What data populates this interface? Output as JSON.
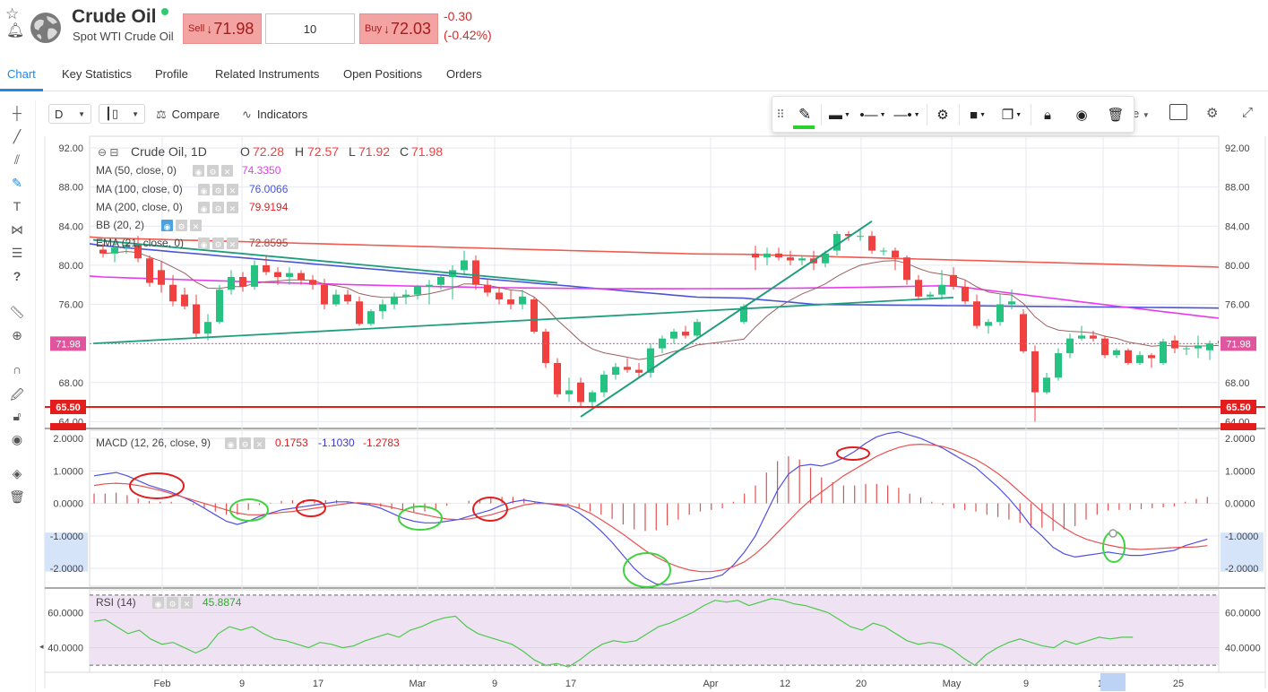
{
  "header": {
    "instrument_name": "Crude Oil",
    "instrument_subtitle": "Spot WTI Crude Oil",
    "sell_label": "Sell",
    "sell_price": "71.98",
    "quantity": "10",
    "buy_label": "Buy",
    "buy_price": "72.03",
    "change_abs": "-0.30",
    "change_pct": "(-0.42%)",
    "arrow": "↓"
  },
  "tabs": [
    "Chart",
    "Key Statistics",
    "Profile",
    "Related Instruments",
    "Open Positions",
    "Orders"
  ],
  "toolbar": {
    "interval": "D",
    "compare_label": "Compare",
    "indicators_label": "Indicators",
    "partial_dropdown": "e"
  },
  "legend": {
    "symbol": "Crude Oil, 1D",
    "o_label": "O",
    "o_value": "72.28",
    "h_label": "H",
    "h_value": "72.57",
    "l_label": "L",
    "l_value": "71.92",
    "c_label": "C",
    "c_value": "71.98",
    "ma50_label": "MA (50, close, 0)",
    "ma50_value": "74.3350",
    "ma100_label": "MA (100, close, 0)",
    "ma100_value": "76.0066",
    "ma200_label": "MA (200, close, 0)",
    "ma200_value": "79.9194",
    "bb_label": "BB (20, 2)",
    "ema_label": "EMA (21, close, 0)",
    "ema_value": "72.8595",
    "macd_label": "MACD (12, 26, close, 9)",
    "macd_v1": "0.1753",
    "macd_v2": "-1.1030",
    "macd_v3": "-1.2783",
    "rsi_label": "RSI (14)",
    "rsi_value": "45.8874"
  },
  "colors": {
    "up": "#26c281",
    "down": "#f0403f",
    "ma50": "#e83aee",
    "ma100": "#4a55d6",
    "ma200": "#f05a4f",
    "ema": "#9b6060",
    "trend": "#1f9e7e",
    "support": "#e31c1c",
    "rsi": "#4cc94c",
    "rsi_bg": "#efe3f3",
    "macd_line": "#5050e0",
    "signal_line": "#e85050"
  },
  "chart_data": [
    {
      "type": "candlestick",
      "title": "Crude Oil, 1D",
      "y_ticks": [
        "92.00",
        "88.00",
        "84.00",
        "80.00",
        "76.00",
        "72.00",
        "68.00",
        "64.00"
      ],
      "ylim": [
        63.3,
        93.2
      ],
      "x_ticks": [
        "Feb",
        "9",
        "17",
        "Mar",
        "9",
        "17",
        "Apr",
        "12",
        "20",
        "May",
        "9",
        "17",
        "25"
      ],
      "last_price_label": "71.98",
      "support_label": "65.50",
      "support_level": 65.5,
      "partial_bottom_label": "63.34",
      "candles": [
        [
          81.6,
          82.2,
          80.8,
          81.2
        ],
        [
          81.2,
          82.2,
          80.3,
          81.8
        ],
        [
          81.8,
          82.7,
          81.2,
          82.1
        ],
        [
          82.1,
          83.0,
          80.3,
          80.7
        ],
        [
          80.7,
          81.0,
          77.8,
          78.2
        ],
        [
          79.5,
          80.4,
          77.2,
          78.0
        ],
        [
          78.0,
          79.0,
          75.8,
          76.3
        ],
        [
          77.0,
          77.7,
          75.5,
          75.8
        ],
        [
          76.0,
          77.0,
          72.5,
          73.0
        ],
        [
          73.0,
          75.0,
          72.3,
          74.2
        ],
        [
          74.2,
          78.0,
          74.0,
          77.5
        ],
        [
          77.5,
          79.5,
          77.0,
          78.8
        ],
        [
          78.8,
          79.3,
          77.3,
          77.8
        ],
        [
          77.8,
          80.5,
          77.5,
          80.0
        ],
        [
          80.0,
          81.0,
          79.0,
          79.3
        ],
        [
          79.3,
          79.8,
          78.0,
          78.8
        ],
        [
          78.8,
          79.8,
          78.0,
          79.2
        ],
        [
          79.2,
          79.5,
          78.0,
          78.5
        ],
        [
          78.5,
          79.0,
          77.5,
          78.0
        ],
        [
          78.0,
          78.6,
          75.5,
          76.0
        ],
        [
          76.0,
          77.5,
          75.8,
          77.0
        ],
        [
          77.0,
          77.5,
          76.0,
          76.3
        ],
        [
          76.3,
          76.8,
          73.8,
          74.0
        ],
        [
          74.0,
          75.5,
          73.8,
          75.3
        ],
        [
          75.3,
          76.5,
          74.5,
          76.0
        ],
        [
          76.0,
          77.2,
          75.5,
          76.8
        ],
        [
          76.8,
          77.5,
          76.0,
          77.0
        ],
        [
          77.0,
          78.0,
          76.5,
          77.8
        ],
        [
          77.8,
          78.5,
          76.0,
          78.0
        ],
        [
          78.0,
          79.0,
          77.5,
          78.8
        ],
        [
          78.8,
          80.0,
          76.5,
          79.5
        ],
        [
          79.5,
          81.5,
          79.0,
          80.5
        ],
        [
          80.5,
          81.0,
          77.5,
          78.0
        ],
        [
          78.0,
          78.5,
          76.8,
          77.2
        ],
        [
          77.2,
          77.8,
          76.0,
          76.5
        ],
        [
          76.5,
          77.5,
          75.5,
          76.0
        ],
        [
          76.0,
          77.5,
          75.5,
          76.8
        ],
        [
          76.5,
          76.8,
          73.0,
          73.2
        ],
        [
          73.2,
          73.5,
          69.5,
          70.0
        ],
        [
          70.0,
          70.5,
          66.5,
          66.8
        ],
        [
          66.8,
          68.5,
          66.0,
          67.2
        ],
        [
          68.0,
          68.5,
          65.5,
          66.0
        ],
        [
          66.0,
          67.2,
          65.2,
          67.0
        ],
        [
          67.0,
          69.2,
          66.5,
          68.8
        ],
        [
          68.8,
          70.0,
          68.3,
          69.6
        ],
        [
          69.6,
          70.5,
          69.0,
          69.3
        ],
        [
          69.3,
          70.0,
          68.5,
          69.0
        ],
        [
          69.0,
          72.0,
          68.5,
          71.5
        ],
        [
          71.5,
          72.8,
          71.0,
          72.5
        ],
        [
          72.5,
          73.5,
          72.0,
          73.2
        ],
        [
          73.2,
          73.8,
          72.5,
          72.8
        ],
        [
          72.8,
          74.5,
          72.5,
          74.2
        ],
        [
          74.2,
          76.0,
          74.0,
          75.8
        ],
        [
          81.2,
          82.0,
          79.5,
          80.8
        ],
        [
          80.8,
          81.8,
          80.0,
          81.2
        ],
        [
          81.2,
          81.8,
          80.5,
          80.8
        ],
        [
          80.8,
          81.5,
          80.0,
          80.5
        ],
        [
          80.5,
          81.0,
          80.0,
          80.7
        ],
        [
          80.7,
          81.5,
          79.5,
          80.2
        ],
        [
          80.2,
          81.5,
          79.8,
          81.2
        ],
        [
          81.5,
          83.5,
          81.0,
          83.2
        ],
        [
          83.2,
          83.5,
          82.5,
          83.0
        ],
        [
          83.0,
          83.8,
          82.5,
          83.0
        ],
        [
          83.0,
          83.5,
          81.2,
          81.5
        ],
        [
          81.5,
          81.8,
          81.0,
          81.5
        ],
        [
          81.5,
          81.8,
          79.5,
          80.8
        ],
        [
          80.8,
          81.0,
          78.0,
          78.5
        ],
        [
          78.5,
          79.0,
          76.5,
          76.8
        ],
        [
          76.8,
          77.3,
          76.5,
          77.0
        ],
        [
          77.0,
          79.5,
          76.5,
          78.0
        ],
        [
          79.0,
          79.8,
          77.5,
          77.8
        ],
        [
          77.8,
          78.5,
          76.0,
          76.3
        ],
        [
          76.3,
          77.0,
          73.5,
          73.8
        ],
        [
          73.8,
          74.5,
          73.0,
          74.2
        ],
        [
          74.2,
          77.0,
          73.8,
          76.0
        ],
        [
          76.0,
          77.5,
          75.5,
          76.3
        ],
        [
          75.0,
          75.5,
          71.0,
          71.2
        ],
        [
          71.2,
          71.8,
          64.0,
          67.0
        ],
        [
          67.0,
          69.0,
          66.8,
          68.5
        ],
        [
          68.5,
          71.5,
          68.2,
          71.0
        ],
        [
          71.0,
          73.0,
          70.5,
          72.5
        ],
        [
          72.5,
          73.8,
          72.3,
          72.8
        ],
        [
          72.8,
          73.3,
          72.2,
          72.5
        ],
        [
          72.5,
          72.8,
          70.5,
          70.8
        ],
        [
          70.8,
          71.5,
          70.5,
          71.3
        ],
        [
          71.3,
          71.5,
          69.8,
          70.0
        ],
        [
          70.0,
          71.2,
          69.8,
          70.8
        ],
        [
          70.8,
          71.0,
          69.5,
          70.5
        ],
        [
          70.0,
          72.5,
          69.8,
          72.2
        ],
        [
          72.3,
          72.8,
          71.0,
          71.5
        ],
        [
          71.5,
          71.8,
          70.8,
          71.5
        ],
        [
          71.5,
          72.8,
          70.5,
          71.8
        ],
        [
          71.3,
          72.3,
          70.3,
          72.0
        ],
        [
          72.28,
          72.57,
          71.92,
          71.98
        ]
      ],
      "candle_gaps": [
        [
          52,
          3
        ]
      ]
    },
    {
      "type": "line",
      "title": "MACD (12, 26, close, 9)",
      "y_ticks": [
        "2.0000",
        "1.0000",
        "0.0000",
        "-1.0000",
        "-2.0000"
      ],
      "ylim": [
        -2.55,
        2.25
      ],
      "macd": [
        0.85,
        0.9,
        0.95,
        0.85,
        0.7,
        0.55,
        0.45,
        0.35,
        0.2,
        0.05,
        -0.15,
        -0.35,
        -0.55,
        -0.65,
        -0.55,
        -0.4,
        -0.3,
        -0.2,
        -0.15,
        -0.1,
        -0.05,
        0.0,
        0.05,
        0.05,
        0.0,
        -0.05,
        -0.15,
        -0.3,
        -0.45,
        -0.55,
        -0.6,
        -0.6,
        -0.55,
        -0.5,
        -0.4,
        -0.3,
        -0.2,
        -0.05,
        0.05,
        0.1,
        0.05,
        0.0,
        -0.05,
        -0.1,
        -0.3,
        -0.55,
        -0.85,
        -1.2,
        -1.6,
        -2.0,
        -2.3,
        -2.48,
        -2.5,
        -2.45,
        -2.4,
        -2.35,
        -2.3,
        -2.2,
        -1.9,
        -1.5,
        -1.0,
        -0.3,
        0.4,
        0.9,
        1.15,
        1.2,
        1.15,
        1.25,
        1.4,
        1.6,
        1.85,
        2.05,
        2.15,
        2.2,
        2.1,
        2.0,
        1.85,
        1.7,
        1.5,
        1.3,
        1.1,
        0.8,
        0.5,
        0.15,
        -0.25,
        -0.7,
        -1.0,
        -1.35,
        -1.55,
        -1.65,
        -1.6,
        -1.55,
        -1.5,
        -1.55,
        -1.6,
        -1.6,
        -1.55,
        -1.5,
        -1.45,
        -1.3,
        -1.2,
        -1.1
      ],
      "signal": [
        0.55,
        0.6,
        0.62,
        0.6,
        0.55,
        0.48,
        0.4,
        0.3,
        0.2,
        0.1,
        0.0,
        -0.1,
        -0.2,
        -0.3,
        -0.35,
        -0.35,
        -0.32,
        -0.28,
        -0.25,
        -0.2,
        -0.15,
        -0.1,
        -0.05,
        0.0,
        0.02,
        0.0,
        -0.05,
        -0.12,
        -0.2,
        -0.28,
        -0.35,
        -0.42,
        -0.48,
        -0.5,
        -0.48,
        -0.42,
        -0.35,
        -0.25,
        -0.15,
        -0.05,
        0.0,
        0.0,
        -0.02,
        -0.05,
        -0.15,
        -0.3,
        -0.5,
        -0.72,
        -0.95,
        -1.2,
        -1.45,
        -1.65,
        -1.82,
        -1.95,
        -2.05,
        -2.1,
        -2.1,
        -2.05,
        -1.95,
        -1.8,
        -1.55,
        -1.25,
        -0.9,
        -0.55,
        -0.2,
        0.1,
        0.35,
        0.6,
        0.85,
        1.05,
        1.25,
        1.45,
        1.6,
        1.72,
        1.8,
        1.82,
        1.8,
        1.75,
        1.65,
        1.5,
        1.35,
        1.15,
        0.92,
        0.65,
        0.35,
        0.05,
        -0.25,
        -0.5,
        -0.75,
        -0.95,
        -1.1,
        -1.2,
        -1.28,
        -1.35,
        -1.4,
        -1.42,
        -1.4,
        -1.38,
        -1.36,
        -1.35,
        -1.34,
        -1.3
      ],
      "hist": [
        0.3,
        0.3,
        0.33,
        0.25,
        0.15,
        0.07,
        0.05,
        0.05,
        0.0,
        -0.05,
        -0.15,
        -0.25,
        -0.35,
        -0.35,
        -0.2,
        -0.05,
        0.02,
        0.08,
        0.1,
        0.1,
        0.1,
        0.1,
        0.1,
        0.05,
        -0.02,
        -0.05,
        -0.1,
        -0.18,
        -0.25,
        -0.27,
        -0.25,
        -0.18,
        -0.07,
        0.0,
        0.08,
        0.12,
        0.15,
        0.2,
        0.2,
        0.15,
        0.05,
        0.0,
        -0.03,
        -0.05,
        -0.15,
        -0.25,
        -0.35,
        -0.48,
        -0.65,
        -0.8,
        -0.85,
        -0.83,
        -0.68,
        -0.5,
        -0.35,
        -0.25,
        -0.2,
        -0.15,
        0.05,
        0.3,
        0.55,
        0.95,
        1.3,
        1.45,
        1.35,
        1.1,
        0.8,
        0.65,
        0.55,
        0.55,
        0.6,
        0.6,
        0.55,
        0.48,
        0.3,
        0.18,
        0.05,
        -0.05,
        -0.15,
        -0.2,
        -0.25,
        -0.35,
        -0.42,
        -0.5,
        -0.6,
        -0.75,
        -0.75,
        -0.85,
        -0.8,
        -0.7,
        -0.5,
        -0.35,
        -0.22,
        -0.2,
        -0.2,
        -0.18,
        -0.15,
        -0.12,
        -0.09,
        0.05,
        0.14,
        0.2
      ]
    },
    {
      "type": "line",
      "title": "RSI (14)",
      "y_ticks": [
        "60.0000",
        "40.0000"
      ],
      "ylim": [
        26,
        73
      ],
      "bands": [
        70,
        30
      ],
      "values": [
        55,
        56,
        52,
        48,
        50,
        45,
        42,
        43,
        40,
        37,
        40,
        48,
        52,
        50,
        52,
        48,
        45,
        44,
        42,
        40,
        43,
        42,
        40,
        41,
        44,
        46,
        48,
        46,
        50,
        52,
        55,
        57,
        58,
        52,
        48,
        46,
        44,
        42,
        38,
        33,
        30,
        31,
        29,
        33,
        38,
        42,
        44,
        43,
        44,
        48,
        52,
        54,
        57,
        60,
        64,
        67,
        66,
        67,
        64,
        66,
        68,
        67,
        65,
        64,
        62,
        60,
        56,
        52,
        50,
        54,
        52,
        48,
        44,
        42,
        43,
        42,
        39,
        34,
        30,
        36,
        40,
        43,
        45,
        43,
        41,
        40,
        44,
        42,
        44,
        46,
        45,
        46,
        46
      ]
    }
  ]
}
